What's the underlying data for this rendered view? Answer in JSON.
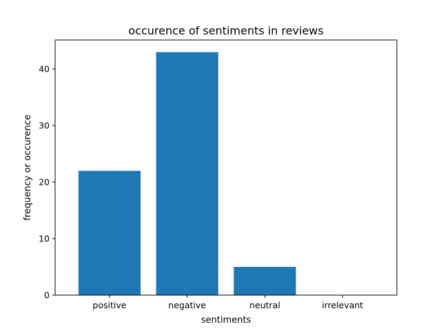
{
  "chart_data": {
    "type": "bar",
    "title": "occurence of sentiments in reviews",
    "xlabel": "sentiments",
    "ylabel": "frequency or occurence",
    "categories": [
      "positive",
      "negative",
      "neutral",
      "irrelevant"
    ],
    "values": [
      22,
      43,
      5,
      0
    ],
    "ylim": [
      0,
      45.15
    ],
    "yticks": [
      0,
      10,
      20,
      30,
      40
    ],
    "grid": false,
    "bar_color": "#1f77b4"
  }
}
